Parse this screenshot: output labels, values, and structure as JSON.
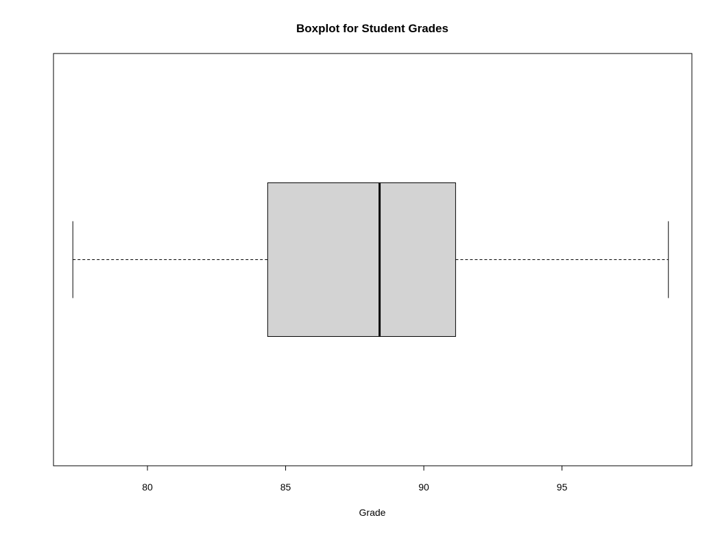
{
  "chart_data": {
    "type": "boxplot",
    "title": "Boxplot for Student Grades",
    "xlabel": "Grade",
    "ylabel": "",
    "orientation": "horizontal",
    "xlim": [
      76.6,
      99.7
    ],
    "xticks": [
      80,
      85,
      90,
      95
    ],
    "xtick_labels": [
      "80",
      "85",
      "90",
      "95"
    ],
    "box": {
      "min": 77.3,
      "q1": 84.35,
      "median": 88.4,
      "q3": 91.15,
      "max": 98.85
    },
    "colors": {
      "box_fill": "#d3d3d3",
      "line": "#000000"
    },
    "grid": false,
    "legend": "none"
  }
}
